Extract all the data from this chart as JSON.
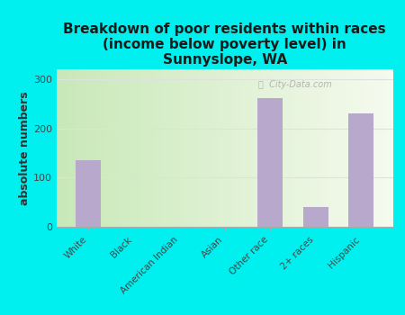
{
  "title": "Breakdown of poor residents within races\n(income below poverty level) in\nSunnyslope, WA",
  "categories": [
    "White",
    "Black",
    "American Indian",
    "Asian",
    "Other race",
    "2+ races",
    "Hispanic"
  ],
  "values": [
    135,
    0,
    0,
    0,
    262,
    40,
    230
  ],
  "bar_color": "#b8a8cc",
  "ylabel": "absolute numbers",
  "ylim": [
    0,
    320
  ],
  "yticks": [
    0,
    100,
    200,
    300
  ],
  "background_color": "#00f0f0",
  "plot_bg_left": "#c8e8b8",
  "plot_bg_right": "#f5faee",
  "grid_color": "#e0e0e0",
  "title_fontsize": 11,
  "axis_label_fontsize": 9,
  "watermark": "City-Data.com"
}
